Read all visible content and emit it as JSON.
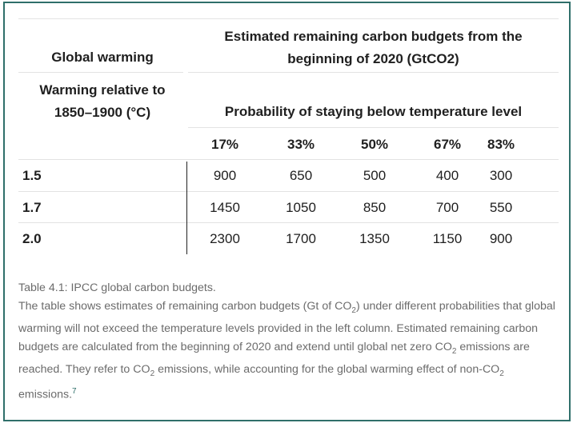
{
  "table": {
    "header_row1": {
      "global_warming": "Global warming",
      "budgets_title": "Estimated remaining carbon budgets from the beginning of 2020 (GtCO2)"
    },
    "header_row2": {
      "warming_relative": "Warming relative to 1850–1900 (°C)",
      "probability_title": "Probability of staying below temperature level"
    },
    "probabilities": [
      "17%",
      "33%",
      "50%",
      "67%",
      "83%"
    ],
    "rows": [
      {
        "warming": "1.5",
        "values": [
          "900",
          "650",
          "500",
          "400",
          "300"
        ]
      },
      {
        "warming": "1.7",
        "values": [
          "1450",
          "1050",
          "850",
          "700",
          "550"
        ]
      },
      {
        "warming": "2.0",
        "values": [
          "2300",
          "1700",
          "1350",
          "1150",
          "900"
        ]
      }
    ]
  },
  "caption": {
    "title": "Table 4.1: IPCC global carbon budgets.",
    "p1": "The table shows estimates of remaining carbon budgets (Gt of CO",
    "co2_sub": "2",
    "p2": ") under different probabilities that global warming will not exceed the temperature levels provided in the left column. Estimated remaining carbon budgets are calculated from the beginning of 2020 and extend until global net zero CO",
    "p3": " emissions are reached. They refer to CO",
    "p4": " emissions, while accounting for the global warming effect of non-CO",
    "p5": " emissions.",
    "footnote": "7"
  }
}
